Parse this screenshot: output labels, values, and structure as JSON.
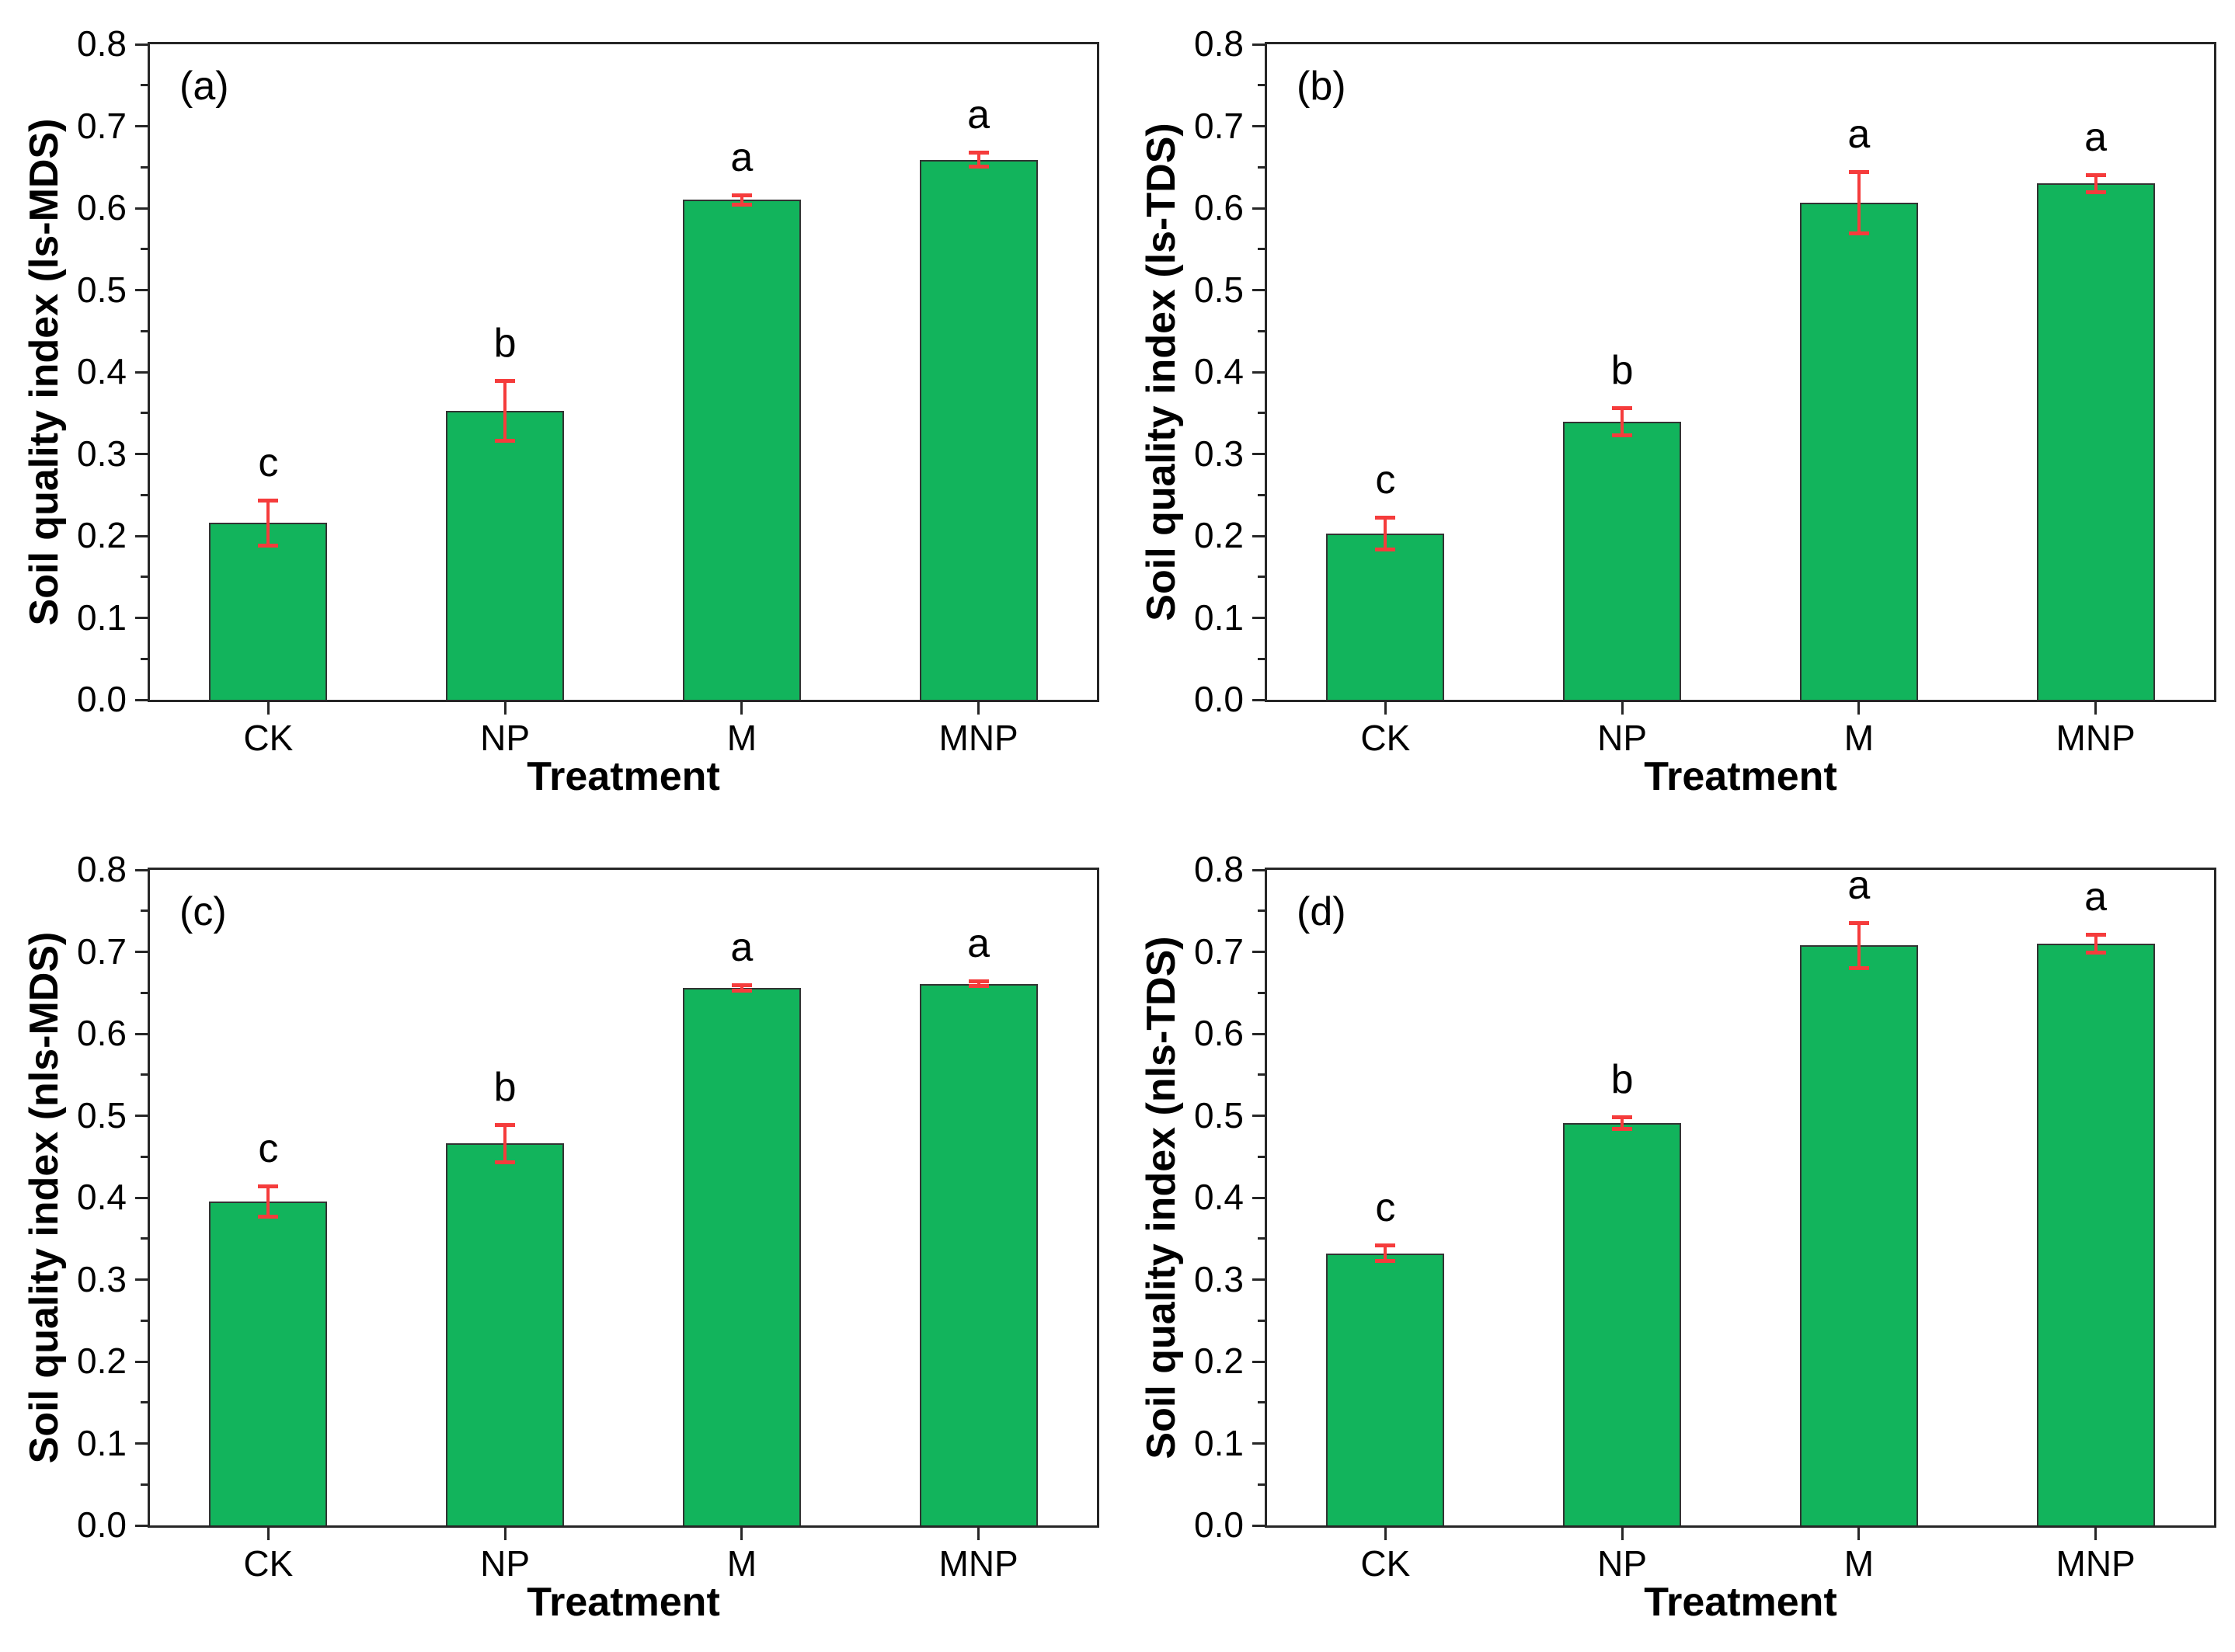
{
  "chart_data": {
    "type": "bar",
    "layout": "2x2-grid",
    "categories": [
      "CK",
      "NP",
      "M",
      "MNP"
    ],
    "ylim": [
      0.0,
      0.8
    ],
    "ytick_step": 0.1,
    "yminor_step": 0.05,
    "grid": "off",
    "error_bars": "symmetric, red, with caps",
    "panels": [
      {
        "panel_label": "(a)",
        "ylabel": "Soil quality index (ls-MDS)",
        "xlabel": "Treatment",
        "categories": [
          "CK",
          "NP",
          "M",
          "MNP"
        ],
        "values": [
          0.216,
          0.353,
          0.61,
          0.659
        ],
        "errors": [
          0.028,
          0.037,
          0.006,
          0.009
        ],
        "sig_letters": [
          "c",
          "b",
          "a",
          "a"
        ]
      },
      {
        "panel_label": "(b)",
        "ylabel": "Soil quality index (ls-TDS)",
        "xlabel": "Treatment",
        "categories": [
          "CK",
          "NP",
          "M",
          "MNP"
        ],
        "values": [
          0.203,
          0.339,
          0.607,
          0.63
        ],
        "errors": [
          0.02,
          0.017,
          0.038,
          0.011
        ],
        "sig_letters": [
          "c",
          "b",
          "a",
          "a"
        ]
      },
      {
        "panel_label": "(c)",
        "ylabel": "Soil quality index (nls-MDS)",
        "xlabel": "Treatment",
        "categories": [
          "CK",
          "NP",
          "M",
          "MNP"
        ],
        "values": [
          0.395,
          0.466,
          0.656,
          0.661
        ],
        "errors": [
          0.019,
          0.023,
          0.004,
          0.003
        ],
        "sig_letters": [
          "c",
          "b",
          "a",
          "a"
        ]
      },
      {
        "panel_label": "(d)",
        "ylabel": "Soil quality index (nls-TDS)",
        "xlabel": "Treatment",
        "categories": [
          "CK",
          "NP",
          "M",
          "MNP"
        ],
        "values": [
          0.332,
          0.491,
          0.708,
          0.71
        ],
        "errors": [
          0.01,
          0.008,
          0.028,
          0.011
        ],
        "sig_letters": [
          "c",
          "b",
          "a",
          "a"
        ]
      }
    ]
  },
  "style": {
    "bar_fill": "#12b45c",
    "bar_edge": "#333333",
    "error_color": "#f53c3c",
    "axis_color": "#262626",
    "text_color": "#000000",
    "background": "#ffffff"
  }
}
